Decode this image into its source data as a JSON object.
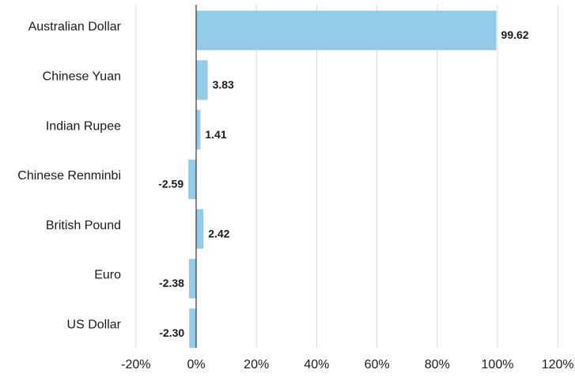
{
  "chart_data": {
    "type": "bar",
    "orientation": "horizontal",
    "categories": [
      "Australian Dollar",
      "Chinese Yuan",
      "Indian Rupee",
      "Chinese Renminbi",
      "British Pound",
      "Euro",
      "US Dollar"
    ],
    "values": [
      99.62,
      3.83,
      1.41,
      -2.59,
      2.42,
      -2.38,
      -2.3
    ],
    "value_labels": [
      "99.62",
      "3.83",
      "1.41",
      "-2.59",
      "2.42",
      "-2.38",
      "-2.30"
    ],
    "x_ticks": [
      -20,
      0,
      20,
      40,
      60,
      80,
      100,
      120
    ],
    "x_tick_labels": [
      "-20%",
      "0%",
      "20%",
      "40%",
      "60%",
      "80%",
      "100%",
      "120%"
    ],
    "xlim": [
      -20,
      120
    ],
    "bar_color": "#94cbe8",
    "grid": true,
    "legend": false,
    "title": "",
    "xlabel": "",
    "ylabel": ""
  }
}
